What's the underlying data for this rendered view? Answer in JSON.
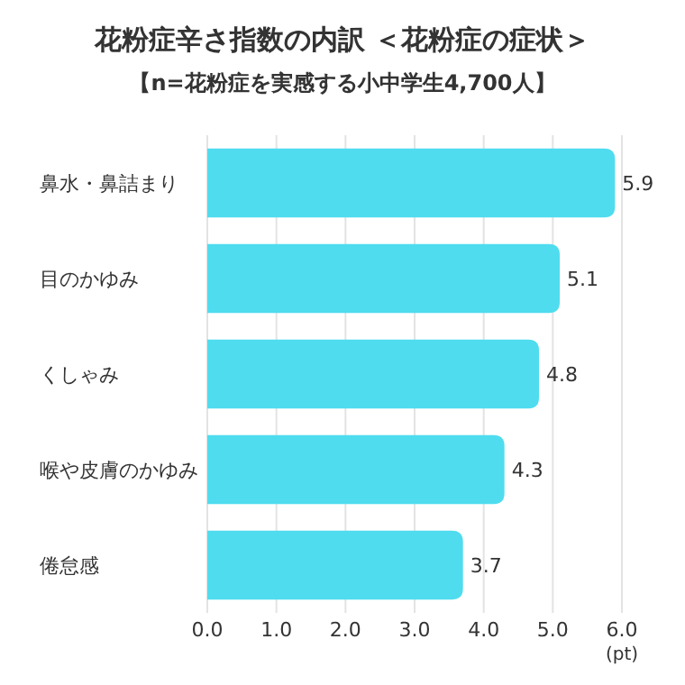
{
  "chart_data": {
    "type": "bar",
    "orientation": "horizontal",
    "title": "花粉症辛さ指数の内訳 ＜花粉症の症状＞",
    "subtitle": "【n=花粉症を実感する小中学生4,700人】",
    "xlabel": "(pt)",
    "categories": [
      "鼻水・鼻詰まり",
      "目のかゆみ",
      "くしゃみ",
      "喉や皮膚のかゆみ",
      "倦怠感"
    ],
    "values": [
      5.9,
      5.1,
      4.8,
      4.3,
      3.7
    ],
    "color": "#4fdcef",
    "xlim": [
      0,
      6
    ],
    "xticks": [
      {
        "value": 0,
        "label": "0.0"
      },
      {
        "value": 1,
        "label": "1.0"
      },
      {
        "value": 2,
        "label": "2.0"
      },
      {
        "value": 3,
        "label": "3.0"
      },
      {
        "value": 4,
        "label": "4.0"
      },
      {
        "value": 5,
        "label": "5.0"
      },
      {
        "value": 6,
        "label": "6.0"
      }
    ],
    "grid": "x",
    "data_labels": true
  }
}
